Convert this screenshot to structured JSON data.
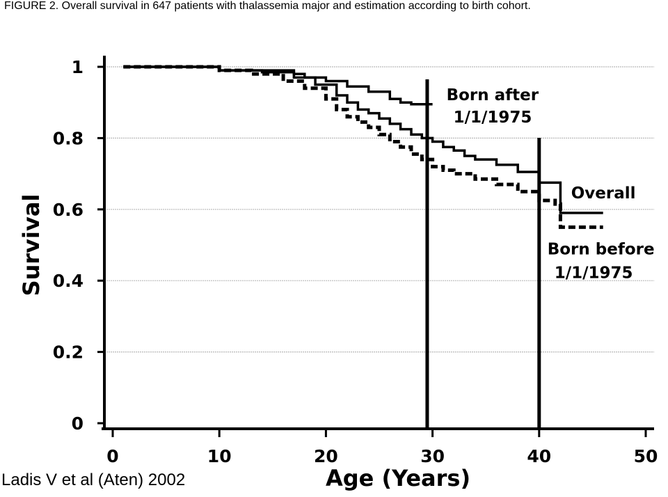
{
  "caption": "FIGURE 2. Overall survival in 647 patients with thalassemia major and estimation according to birth cohort.",
  "credit": "Ladis V et al (Aten) 2002",
  "chart_data": {
    "type": "line",
    "title": "",
    "xlabel": "Age (Years)",
    "ylabel": "Survival",
    "xlim": [
      0,
      50
    ],
    "ylim": [
      0,
      1
    ],
    "x_ticks": [
      0,
      10,
      20,
      30,
      40,
      50
    ],
    "x_tick_labels": [
      "0",
      "10",
      "20",
      "30",
      "40",
      "50"
    ],
    "y_ticks": [
      0,
      0.2,
      0.4,
      0.6,
      0.8,
      1
    ],
    "y_tick_labels": [
      "0",
      "0.2",
      "0.4",
      "0.6",
      "0.8",
      "1"
    ],
    "grid": true,
    "vertical_lines": [
      29.5,
      40
    ],
    "series": [
      {
        "name": "Born after 1/1/1975",
        "style": "solid",
        "step": true,
        "x": [
          1,
          10,
          17,
          18,
          20,
          22,
          24,
          26,
          27,
          28,
          30
        ],
        "y": [
          1,
          0.99,
          0.98,
          0.97,
          0.96,
          0.945,
          0.93,
          0.91,
          0.9,
          0.895,
          0.895
        ]
      },
      {
        "name": "Overall",
        "style": "solid",
        "step": true,
        "x": [
          1,
          10,
          14,
          17,
          19,
          21,
          22,
          23,
          24,
          25,
          26,
          27,
          28,
          29,
          30,
          31,
          32,
          33,
          34,
          36,
          38,
          40,
          41.5,
          42,
          46
        ],
        "y": [
          1,
          0.99,
          0.985,
          0.97,
          0.95,
          0.92,
          0.9,
          0.88,
          0.87,
          0.855,
          0.84,
          0.825,
          0.81,
          0.8,
          0.79,
          0.775,
          0.765,
          0.75,
          0.74,
          0.725,
          0.705,
          0.675,
          0.675,
          0.59,
          0.59
        ]
      },
      {
        "name": "Born before 1/1/1975",
        "style": "dashed",
        "step": true,
        "x": [
          1,
          10,
          13,
          16,
          18,
          20,
          21,
          22,
          23,
          24,
          25,
          26,
          27,
          28,
          29,
          30,
          31,
          32,
          34,
          36,
          38,
          40,
          41.5,
          42,
          46
        ],
        "y": [
          1,
          0.99,
          0.98,
          0.96,
          0.94,
          0.91,
          0.88,
          0.86,
          0.845,
          0.83,
          0.81,
          0.79,
          0.775,
          0.755,
          0.74,
          0.72,
          0.71,
          0.7,
          0.685,
          0.67,
          0.65,
          0.625,
          0.615,
          0.55,
          0.55
        ]
      }
    ],
    "annotations": [
      {
        "lines": [
          "Born after",
          "1/1/1975"
        ],
        "anchor": "series-0-end"
      },
      {
        "lines": [
          "Overall"
        ],
        "anchor": "series-1-end"
      },
      {
        "lines": [
          "Born before",
          "1/1/1975"
        ],
        "anchor": "series-2-end"
      }
    ]
  }
}
